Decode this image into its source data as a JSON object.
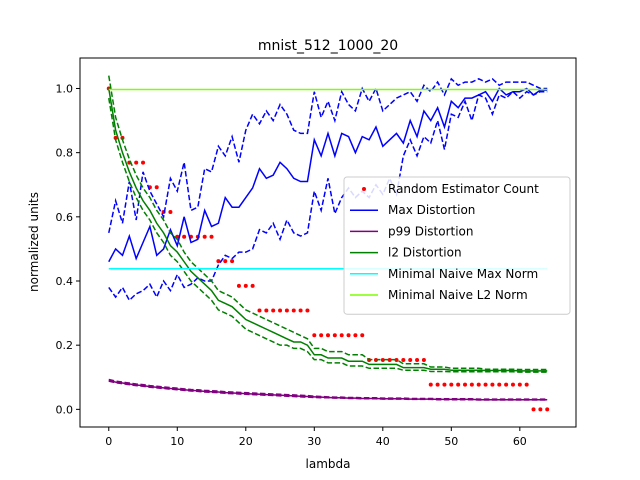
{
  "chart_data": {
    "type": "line",
    "title": "mnist_512_1000_20",
    "xlabel": "lambda",
    "ylabel": "normalized units",
    "xlim": [
      -4.2,
      68.2
    ],
    "ylim": [
      -0.055,
      1.095
    ],
    "xticks": [
      0,
      10,
      20,
      30,
      40,
      50,
      60
    ],
    "xtick_labels": [
      "0",
      "10",
      "20",
      "30",
      "40",
      "50",
      "60"
    ],
    "yticks": [
      0.0,
      0.2,
      0.4,
      0.6,
      0.8,
      1.0
    ],
    "ytick_labels": [
      "0.0",
      "0.2",
      "0.4",
      "0.6",
      "0.8",
      "1.0"
    ],
    "grid": false,
    "legend_position": "center-right",
    "x": [
      0,
      1,
      2,
      3,
      4,
      5,
      6,
      7,
      8,
      9,
      10,
      11,
      12,
      13,
      14,
      15,
      16,
      17,
      18,
      19,
      20,
      21,
      22,
      23,
      24,
      25,
      26,
      27,
      28,
      29,
      30,
      31,
      32,
      33,
      34,
      35,
      36,
      37,
      38,
      39,
      40,
      41,
      42,
      43,
      44,
      45,
      46,
      47,
      48,
      49,
      50,
      51,
      52,
      53,
      54,
      55,
      56,
      57,
      58,
      59,
      60,
      61,
      62,
      63,
      64
    ],
    "series": [
      {
        "name": "Random Estimator Count",
        "kind": "scatter",
        "color": "#ff0000",
        "values": [
          1.0,
          0.846,
          0.846,
          0.769,
          0.769,
          0.769,
          0.692,
          0.692,
          0.615,
          0.615,
          0.538,
          0.538,
          0.538,
          0.538,
          0.538,
          0.538,
          0.462,
          0.462,
          0.462,
          0.385,
          0.385,
          0.385,
          0.308,
          0.308,
          0.308,
          0.308,
          0.308,
          0.308,
          0.308,
          0.308,
          0.231,
          0.231,
          0.231,
          0.231,
          0.231,
          0.231,
          0.231,
          0.231,
          0.154,
          0.154,
          0.154,
          0.154,
          0.154,
          0.154,
          0.154,
          0.154,
          0.154,
          0.077,
          0.077,
          0.077,
          0.077,
          0.077,
          0.077,
          0.077,
          0.077,
          0.077,
          0.077,
          0.077,
          0.077,
          0.077,
          0.077,
          0.077,
          0.0,
          0.0,
          0.0
        ]
      },
      {
        "name": "Max Distortion",
        "kind": "line",
        "color": "#0000ff",
        "values": [
          0.46,
          0.5,
          0.48,
          0.54,
          0.47,
          0.52,
          0.57,
          0.48,
          0.5,
          0.56,
          0.51,
          0.6,
          0.52,
          0.53,
          0.62,
          0.57,
          0.58,
          0.66,
          0.63,
          0.63,
          0.66,
          0.69,
          0.75,
          0.72,
          0.73,
          0.77,
          0.75,
          0.72,
          0.71,
          0.71,
          0.84,
          0.79,
          0.86,
          0.79,
          0.86,
          0.85,
          0.8,
          0.85,
          0.84,
          0.88,
          0.82,
          0.84,
          0.86,
          0.83,
          0.9,
          0.85,
          0.93,
          0.9,
          0.94,
          0.88,
          0.96,
          0.94,
          0.97,
          0.97,
          0.98,
          0.99,
          0.96,
          1.0,
          0.98,
          0.99,
          0.99,
          1.0,
          0.98,
          0.995,
          0.995
        ],
        "lower": [
          0.38,
          0.35,
          0.38,
          0.34,
          0.36,
          0.37,
          0.39,
          0.35,
          0.4,
          0.37,
          0.42,
          0.38,
          0.39,
          0.41,
          0.4,
          0.4,
          0.45,
          0.48,
          0.47,
          0.49,
          0.49,
          0.5,
          0.56,
          0.55,
          0.58,
          0.53,
          0.59,
          0.55,
          0.54,
          0.55,
          0.68,
          0.62,
          0.72,
          0.61,
          0.66,
          0.69,
          0.66,
          0.68,
          0.66,
          0.7,
          0.67,
          0.72,
          0.67,
          0.79,
          0.84,
          0.79,
          0.85,
          0.83,
          0.9,
          0.81,
          0.92,
          0.91,
          0.96,
          0.9,
          0.98,
          0.97,
          0.92,
          0.98,
          0.97,
          0.99,
          0.97,
          0.99,
          0.98,
          0.99,
          0.99
        ],
        "upper": [
          0.55,
          0.65,
          0.58,
          0.71,
          0.59,
          0.74,
          0.68,
          0.64,
          0.6,
          0.72,
          0.68,
          0.77,
          0.62,
          0.63,
          0.75,
          0.74,
          0.82,
          0.79,
          0.85,
          0.77,
          0.87,
          0.92,
          0.89,
          0.93,
          0.9,
          0.95,
          0.92,
          0.87,
          0.86,
          0.86,
          0.99,
          0.91,
          0.96,
          0.9,
          0.99,
          0.95,
          0.93,
          1.0,
          0.96,
          1.0,
          0.93,
          0.95,
          0.97,
          0.98,
          0.99,
          0.96,
          1.01,
          0.99,
          1.02,
          0.98,
          1.03,
          1.01,
          1.02,
          1.02,
          1.03,
          1.02,
          1.03,
          1.01,
          1.02,
          1.02,
          1.02,
          1.02,
          1.01,
          1.0,
          1.0
        ]
      },
      {
        "name": "p99 Distortion",
        "kind": "line",
        "color": "#800080",
        "values": [
          0.09,
          0.085,
          0.082,
          0.079,
          0.076,
          0.074,
          0.071,
          0.069,
          0.067,
          0.065,
          0.063,
          0.061,
          0.059,
          0.058,
          0.056,
          0.055,
          0.054,
          0.052,
          0.051,
          0.05,
          0.049,
          0.048,
          0.047,
          0.046,
          0.045,
          0.044,
          0.043,
          0.042,
          0.041,
          0.04,
          0.039,
          0.038,
          0.037,
          0.036,
          0.036,
          0.035,
          0.035,
          0.034,
          0.034,
          0.034,
          0.033,
          0.033,
          0.033,
          0.033,
          0.032,
          0.032,
          0.032,
          0.032,
          0.031,
          0.031,
          0.031,
          0.031,
          0.031,
          0.031,
          0.03,
          0.03,
          0.03,
          0.03,
          0.03,
          0.03,
          0.03,
          0.03,
          0.03,
          0.03,
          0.03
        ],
        "lower": [
          0.088,
          0.083,
          0.08,
          0.077,
          0.074,
          0.072,
          0.069,
          0.067,
          0.065,
          0.063,
          0.061,
          0.059,
          0.057,
          0.056,
          0.054,
          0.053,
          0.052,
          0.05,
          0.049,
          0.048,
          0.047,
          0.046,
          0.045,
          0.044,
          0.043,
          0.042,
          0.041,
          0.04,
          0.039,
          0.038,
          0.037,
          0.036,
          0.036,
          0.035,
          0.035,
          0.034,
          0.034,
          0.033,
          0.033,
          0.033,
          0.032,
          0.032,
          0.032,
          0.032,
          0.031,
          0.031,
          0.031,
          0.031,
          0.03,
          0.03,
          0.03,
          0.03,
          0.03,
          0.03,
          0.029,
          0.029,
          0.029,
          0.029,
          0.029,
          0.029,
          0.029,
          0.029,
          0.029,
          0.029,
          0.029
        ],
        "upper": [
          0.093,
          0.088,
          0.085,
          0.082,
          0.079,
          0.077,
          0.074,
          0.072,
          0.07,
          0.068,
          0.066,
          0.064,
          0.062,
          0.061,
          0.059,
          0.058,
          0.057,
          0.055,
          0.054,
          0.053,
          0.052,
          0.051,
          0.05,
          0.049,
          0.048,
          0.047,
          0.046,
          0.045,
          0.044,
          0.043,
          0.041,
          0.04,
          0.039,
          0.038,
          0.038,
          0.037,
          0.037,
          0.036,
          0.036,
          0.036,
          0.035,
          0.035,
          0.035,
          0.035,
          0.034,
          0.034,
          0.034,
          0.034,
          0.033,
          0.033,
          0.033,
          0.033,
          0.033,
          0.033,
          0.032,
          0.032,
          0.032,
          0.032,
          0.032,
          0.032,
          0.032,
          0.032,
          0.032,
          0.032,
          0.032
        ]
      },
      {
        "name": "l2 Distortion",
        "kind": "line",
        "color": "#008000",
        "values": [
          1.0,
          0.87,
          0.8,
          0.74,
          0.69,
          0.65,
          0.62,
          0.58,
          0.55,
          0.51,
          0.49,
          0.46,
          0.43,
          0.41,
          0.39,
          0.37,
          0.34,
          0.33,
          0.32,
          0.3,
          0.28,
          0.27,
          0.26,
          0.25,
          0.24,
          0.23,
          0.22,
          0.21,
          0.21,
          0.2,
          0.17,
          0.17,
          0.16,
          0.16,
          0.16,
          0.15,
          0.15,
          0.15,
          0.14,
          0.14,
          0.14,
          0.14,
          0.14,
          0.13,
          0.13,
          0.13,
          0.13,
          0.125,
          0.125,
          0.125,
          0.122,
          0.122,
          0.122,
          0.122,
          0.122,
          0.121,
          0.121,
          0.121,
          0.121,
          0.121,
          0.12,
          0.12,
          0.12,
          0.12,
          0.12
        ],
        "lower": [
          0.97,
          0.84,
          0.77,
          0.71,
          0.66,
          0.62,
          0.59,
          0.55,
          0.52,
          0.48,
          0.46,
          0.43,
          0.4,
          0.38,
          0.36,
          0.34,
          0.31,
          0.3,
          0.29,
          0.27,
          0.25,
          0.24,
          0.23,
          0.22,
          0.21,
          0.2,
          0.2,
          0.19,
          0.19,
          0.18,
          0.155,
          0.155,
          0.145,
          0.145,
          0.145,
          0.135,
          0.135,
          0.135,
          0.128,
          0.128,
          0.128,
          0.128,
          0.128,
          0.122,
          0.122,
          0.122,
          0.122,
          0.118,
          0.118,
          0.118,
          0.117,
          0.117,
          0.117,
          0.117,
          0.117,
          0.117,
          0.117,
          0.117,
          0.117,
          0.117,
          0.116,
          0.116,
          0.116,
          0.116,
          0.116
        ],
        "upper": [
          1.04,
          0.91,
          0.84,
          0.78,
          0.73,
          0.69,
          0.66,
          0.62,
          0.59,
          0.55,
          0.53,
          0.49,
          0.46,
          0.44,
          0.42,
          0.4,
          0.37,
          0.36,
          0.35,
          0.33,
          0.31,
          0.3,
          0.29,
          0.28,
          0.27,
          0.26,
          0.25,
          0.24,
          0.23,
          0.22,
          0.19,
          0.19,
          0.18,
          0.18,
          0.18,
          0.17,
          0.17,
          0.17,
          0.155,
          0.155,
          0.155,
          0.155,
          0.155,
          0.142,
          0.142,
          0.142,
          0.142,
          0.132,
          0.132,
          0.132,
          0.128,
          0.128,
          0.128,
          0.128,
          0.128,
          0.125,
          0.125,
          0.125,
          0.125,
          0.125,
          0.124,
          0.124,
          0.124,
          0.124,
          0.124
        ]
      },
      {
        "name": "Minimal Naive Max Norm",
        "kind": "hline",
        "color": "#00ffff",
        "value": 0.438
      },
      {
        "name": "Minimal Naive L2 Norm",
        "kind": "hline",
        "color": "#7fff00",
        "value": 0.997
      }
    ]
  }
}
